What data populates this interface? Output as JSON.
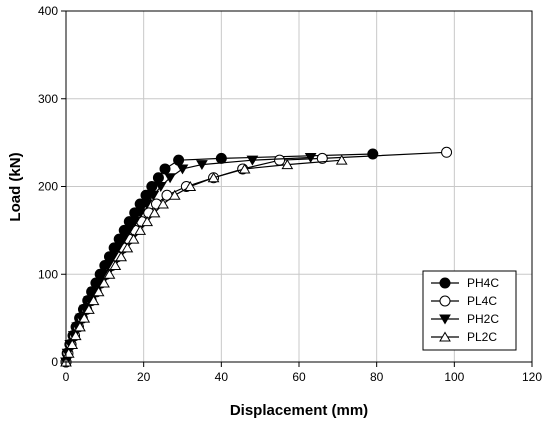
{
  "chart_data": {
    "type": "line",
    "xlabel": "Displacement (mm)",
    "ylabel": "Load (kN)",
    "xlim": [
      0,
      120
    ],
    "ylim": [
      0,
      400
    ],
    "xticks": [
      0,
      20,
      40,
      60,
      80,
      100,
      120
    ],
    "yticks": [
      0,
      100,
      200,
      300,
      400
    ],
    "grid": true,
    "legend_position": "bottom-right",
    "series": [
      {
        "name": "PH4C",
        "marker": "circle-filled",
        "x": [
          0,
          0.3,
          1.0,
          1.8,
          2.6,
          3.5,
          4.5,
          5.6,
          6.6,
          7.7,
          8.8,
          10.0,
          11.2,
          12.4,
          13.7,
          15.0,
          16.3,
          17.7,
          19.1,
          20.6,
          22.1,
          23.8,
          25.5,
          29.0,
          40.0,
          79.0
        ],
        "y": [
          0,
          10,
          20,
          30,
          40,
          50,
          60,
          70,
          80,
          90,
          100,
          110,
          120,
          130,
          140,
          150,
          160,
          170,
          180,
          190,
          200,
          210,
          220,
          230,
          232,
          237
        ]
      },
      {
        "name": "PL4C",
        "marker": "circle-open",
        "x": [
          0,
          0.5,
          1.3,
          2.2,
          3.2,
          4.2,
          5.3,
          6.5,
          7.8,
          9.0,
          10.4,
          11.8,
          13.2,
          14.7,
          16.2,
          17.8,
          19.5,
          21.3,
          23.3,
          26.0,
          31.0,
          38.0,
          45.5,
          55.0,
          66.0,
          98.0
        ],
        "y": [
          0,
          10,
          20,
          30,
          40,
          50,
          60,
          70,
          80,
          90,
          100,
          110,
          120,
          130,
          140,
          150,
          160,
          170,
          180,
          190,
          200,
          210,
          220,
          230,
          232,
          239
        ]
      },
      {
        "name": "PH2C",
        "marker": "triangle-down-filled",
        "x": [
          0,
          0.4,
          1.1,
          2.0,
          2.9,
          3.9,
          4.9,
          6.0,
          7.1,
          8.3,
          9.5,
          10.8,
          12.1,
          13.4,
          14.8,
          16.2,
          17.7,
          19.2,
          20.8,
          22.5,
          24.4,
          26.8,
          30.0,
          35.0,
          48.0,
          63.0
        ],
        "y": [
          0,
          10,
          20,
          30,
          40,
          50,
          60,
          70,
          80,
          90,
          100,
          110,
          120,
          130,
          140,
          150,
          160,
          170,
          180,
          190,
          200,
          210,
          220,
          225,
          230,
          233
        ]
      },
      {
        "name": "PL2C",
        "marker": "triangle-up-open",
        "x": [
          0,
          0.7,
          1.6,
          2.5,
          3.6,
          4.7,
          5.9,
          7.1,
          8.4,
          9.8,
          11.2,
          12.7,
          14.2,
          15.8,
          17.4,
          19.1,
          20.9,
          22.8,
          25.0,
          28.0,
          32.0,
          38.0,
          46.0,
          57.0,
          71.0
        ],
        "y": [
          0,
          10,
          20,
          30,
          40,
          50,
          60,
          70,
          80,
          90,
          100,
          110,
          120,
          130,
          140,
          150,
          160,
          170,
          180,
          190,
          200,
          210,
          220,
          225,
          230
        ]
      }
    ]
  }
}
